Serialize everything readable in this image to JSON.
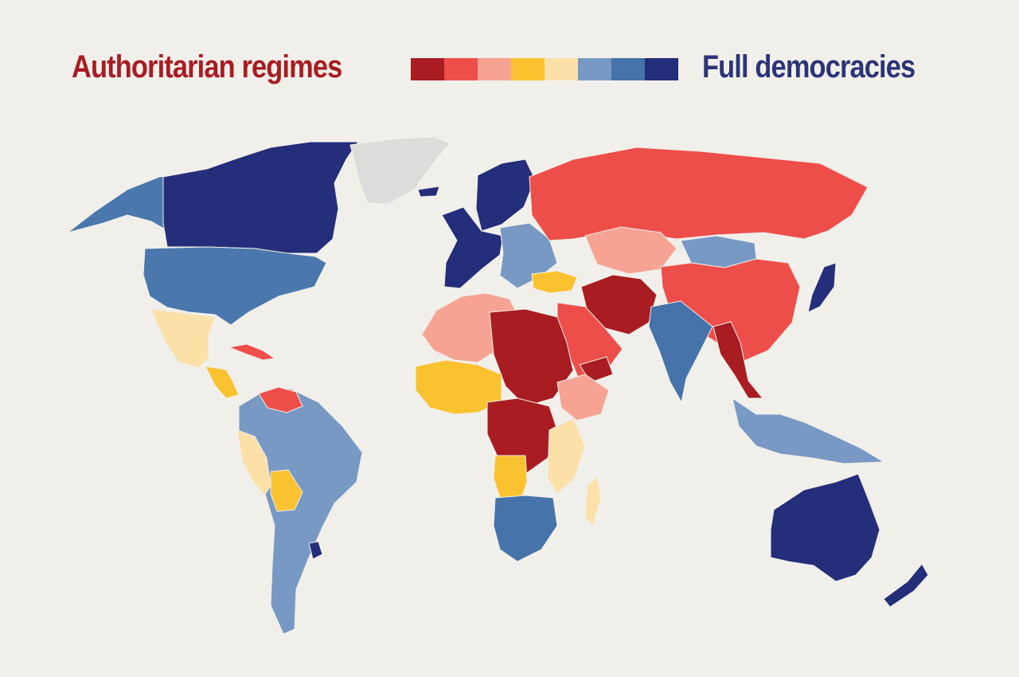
{
  "legend": {
    "left_label": "Authoritarian regimes",
    "right_label": "Full democracies",
    "left_color": "#a81c22",
    "right_color": "#2a3478",
    "scale_colors": [
      "#a81c22",
      "#ee4e4a",
      "#f6a394",
      "#fbc22f",
      "#fbe0a8",
      "#7899c4",
      "#4573aa",
      "#252e7a"
    ]
  },
  "map": {
    "no_data_color": "#dddcda",
    "regions": [
      {
        "name": "alaska",
        "color": "#4a78ad"
      },
      {
        "name": "canada",
        "color": "#252e7a"
      },
      {
        "name": "greenland",
        "color": "#dddcda"
      },
      {
        "name": "usa",
        "color": "#4a78ad"
      },
      {
        "name": "mexico",
        "color": "#fbe0a8"
      },
      {
        "name": "central-america",
        "color": "#fbc22f"
      },
      {
        "name": "cuba",
        "color": "#ee4e4a"
      },
      {
        "name": "south-america",
        "color": "#7899c4"
      },
      {
        "name": "venezuela",
        "color": "#ee4e4a"
      },
      {
        "name": "peru",
        "color": "#fbe0a8"
      },
      {
        "name": "bolivia",
        "color": "#fbc22f"
      },
      {
        "name": "uruguay",
        "color": "#252e7a"
      },
      {
        "name": "iceland",
        "color": "#252e7a"
      },
      {
        "name": "scandinavia",
        "color": "#252e7a"
      },
      {
        "name": "western-europe",
        "color": "#252e7a"
      },
      {
        "name": "eastern-europe",
        "color": "#7899c4"
      },
      {
        "name": "turkey",
        "color": "#fbc22f"
      },
      {
        "name": "russia",
        "color": "#ee4e4a"
      },
      {
        "name": "kazakhstan",
        "color": "#f6a394"
      },
      {
        "name": "mongolia",
        "color": "#7899c4"
      },
      {
        "name": "china",
        "color": "#ee4e4a"
      },
      {
        "name": "iran-afghanistan",
        "color": "#a81c22"
      },
      {
        "name": "arabia",
        "color": "#ee4e4a"
      },
      {
        "name": "yemen",
        "color": "#a81c22"
      },
      {
        "name": "india",
        "color": "#4573aa"
      },
      {
        "name": "myanmar",
        "color": "#a81c22"
      },
      {
        "name": "southeast-asia",
        "color": "#7899c4"
      },
      {
        "name": "japan",
        "color": "#252e7a"
      },
      {
        "name": "australia",
        "color": "#252e7a"
      },
      {
        "name": "new-zealand",
        "color": "#252e7a"
      },
      {
        "name": "north-africa",
        "color": "#f6a394"
      },
      {
        "name": "libya-sudan",
        "color": "#a81c22"
      },
      {
        "name": "west-africa",
        "color": "#fbc22f"
      },
      {
        "name": "central-africa",
        "color": "#a81c22"
      },
      {
        "name": "east-africa",
        "color": "#fbe0a8"
      },
      {
        "name": "ethiopia",
        "color": "#f6a394"
      },
      {
        "name": "angola",
        "color": "#fbc22f"
      },
      {
        "name": "southern-africa",
        "color": "#4573aa"
      },
      {
        "name": "madagascar",
        "color": "#fbe0a8"
      }
    ]
  }
}
